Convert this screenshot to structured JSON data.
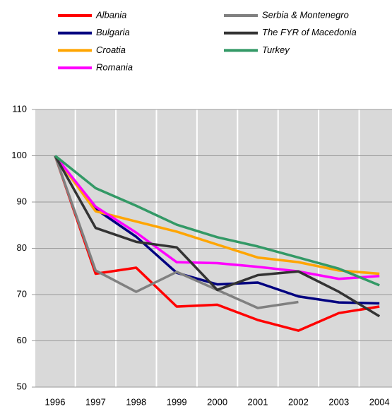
{
  "chart_data": {
    "type": "line",
    "categories": [
      "1996",
      "1997",
      "1998",
      "1999",
      "2000",
      "2001",
      "2002",
      "2003",
      "2004"
    ],
    "series": [
      {
        "name": "Albania",
        "color": "#ff0000",
        "values": [
          100,
          74.5,
          75.8,
          67.4,
          67.8,
          64.5,
          62.2,
          66,
          67.4
        ]
      },
      {
        "name": "Bulgaria",
        "color": "#000080",
        "values": [
          100,
          88.5,
          82.5,
          74.7,
          72.2,
          72.6,
          69.6,
          68.3,
          68.1
        ]
      },
      {
        "name": "Croatia",
        "color": "#ffa500",
        "values": [
          100,
          88,
          85.8,
          83.6,
          80.8,
          78,
          77,
          75.2,
          74.5
        ]
      },
      {
        "name": "Romania",
        "color": "#ff00ff",
        "values": [
          100,
          89,
          83.4,
          77,
          76.8,
          76,
          75,
          73.4,
          74
        ]
      },
      {
        "name": "Serbia & Montenegro",
        "color": "#808080",
        "values": [
          100,
          75.2,
          70.6,
          74.9,
          71,
          67.1,
          68.4,
          null,
          null
        ]
      },
      {
        "name": "The FYR of Macedonia",
        "color": "#333333",
        "values": [
          100,
          84.4,
          81.4,
          80.2,
          71,
          74.2,
          75,
          70.6,
          65.3
        ]
      },
      {
        "name": "Turkey",
        "color": "#339966",
        "values": [
          100,
          93,
          89.2,
          85.1,
          82.4,
          80.4,
          78,
          75.6,
          72
        ]
      }
    ],
    "ylim": [
      50,
      110
    ],
    "yticks": [
      50,
      60,
      70,
      80,
      90,
      100,
      110
    ],
    "grid": true
  }
}
